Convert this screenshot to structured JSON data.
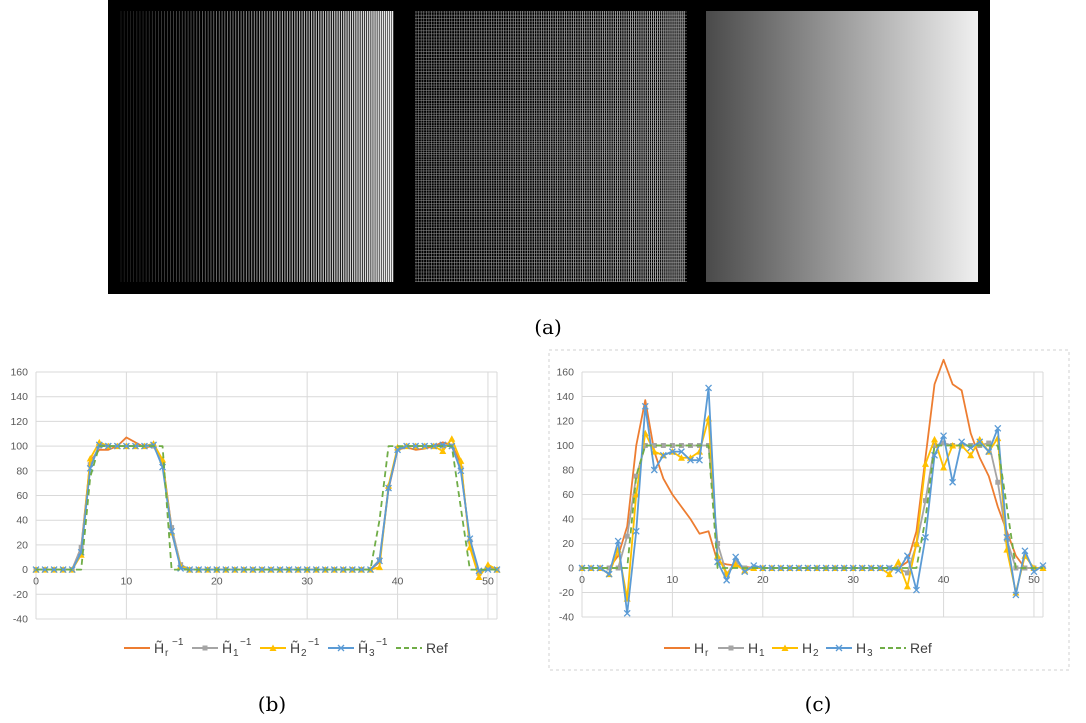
{
  "figure": {
    "captions": {
      "a": "(a)",
      "b": "(b)",
      "c": "(c)"
    }
  },
  "colors": {
    "orange": "#ED7D31",
    "gray": "#A5A5A5",
    "yellow": "#FFC000",
    "blue": "#5B9BD5",
    "green": "#70AD47",
    "grid": "#D9D9D9",
    "panel_bg": "#000000"
  },
  "images": [
    {
      "pattern": "vertical-lines-increasing-density-left-to-right"
    },
    {
      "pattern": "moire-crosshatch"
    },
    {
      "pattern": "horizontal-gradient-dark-to-light"
    }
  ],
  "chart_data": [
    {
      "id": "b",
      "type": "line",
      "xlim": [
        0,
        51
      ],
      "ylim": [
        -40,
        160
      ],
      "xticks": [
        0,
        10,
        20,
        30,
        40,
        50
      ],
      "yticks": [
        -40,
        -20,
        0,
        20,
        40,
        60,
        80,
        100,
        120,
        140,
        160
      ],
      "grid": true,
      "legend": "bottom",
      "series": [
        {
          "name": "H̃r",
          "sup": "−1",
          "color": "#ED7D31",
          "marker": "none",
          "values": [
            0,
            0,
            0,
            0,
            0,
            18,
            88,
            97,
            97,
            100,
            107,
            103,
            99,
            100,
            88,
            34,
            3,
            0,
            0,
            0,
            0,
            0,
            0,
            0,
            0,
            0,
            0,
            0,
            0,
            0,
            0,
            0,
            0,
            0,
            0,
            0,
            0,
            0,
            6,
            65,
            97,
            99,
            97,
            98,
            100,
            103,
            101,
            86,
            20,
            -4,
            2,
            0
          ]
        },
        {
          "name": "H̃1",
          "sup": "−1",
          "color": "#A5A5A5",
          "marker": "square",
          "values": [
            0,
            0,
            0,
            0,
            0,
            18,
            85,
            100,
            100,
            100,
            100,
            100,
            100,
            100,
            86,
            34,
            4,
            0,
            0,
            0,
            0,
            0,
            0,
            0,
            0,
            0,
            0,
            0,
            0,
            0,
            0,
            0,
            0,
            0,
            0,
            0,
            0,
            0,
            8,
            66,
            98,
            100,
            100,
            100,
            100,
            100,
            100,
            82,
            23,
            -3,
            1,
            0
          ]
        },
        {
          "name": "H̃2",
          "sup": "−1",
          "color": "#FFC000",
          "marker": "triangle",
          "values": [
            0,
            0,
            0,
            0,
            0,
            12,
            90,
            103,
            100,
            100,
            100,
            100,
            100,
            102,
            89,
            30,
            3,
            0,
            0,
            0,
            0,
            0,
            0,
            0,
            0,
            0,
            0,
            0,
            0,
            0,
            0,
            0,
            0,
            0,
            0,
            0,
            0,
            0,
            2,
            68,
            99,
            100,
            100,
            100,
            100,
            96,
            106,
            88,
            18,
            -6,
            4,
            0
          ]
        },
        {
          "name": "H̃3",
          "sup": "−1",
          "color": "#5B9BD5",
          "marker": "x",
          "values": [
            0,
            0,
            0,
            0,
            0,
            14,
            82,
            101,
            100,
            100,
            100,
            100,
            100,
            101,
            83,
            31,
            1,
            0,
            0,
            0,
            0,
            0,
            0,
            0,
            0,
            0,
            0,
            0,
            0,
            0,
            0,
            0,
            0,
            0,
            0,
            0,
            0,
            0,
            7,
            66,
            97,
            100,
            100,
            100,
            100,
            101,
            100,
            80,
            25,
            -1,
            0,
            0
          ]
        },
        {
          "name": "Ref",
          "sup": "",
          "color": "#70AD47",
          "marker": "none",
          "dashed": true,
          "values": [
            0,
            0,
            0,
            0,
            0,
            0,
            75,
            100,
            100,
            100,
            100,
            100,
            100,
            100,
            100,
            0,
            0,
            0,
            0,
            0,
            0,
            0,
            0,
            0,
            0,
            0,
            0,
            0,
            0,
            0,
            0,
            0,
            0,
            0,
            0,
            0,
            0,
            0,
            40,
            100,
            100,
            100,
            100,
            100,
            100,
            100,
            100,
            50,
            0,
            0,
            0,
            0
          ]
        }
      ]
    },
    {
      "id": "c",
      "type": "line",
      "xlim": [
        0,
        51
      ],
      "ylim": [
        -40,
        160
      ],
      "xticks": [
        0,
        10,
        20,
        30,
        40,
        50
      ],
      "yticks": [
        -40,
        -20,
        0,
        20,
        40,
        60,
        80,
        100,
        120,
        140,
        160
      ],
      "grid": true,
      "legend": "bottom",
      "series": [
        {
          "name": "Hr",
          "color": "#ED7D31",
          "marker": "none",
          "values": [
            0,
            0,
            0,
            0,
            10,
            34,
            100,
            137,
            95,
            73,
            60,
            50,
            40,
            28,
            30,
            5,
            3,
            2,
            1,
            0,
            0,
            0,
            0,
            0,
            0,
            0,
            0,
            0,
            0,
            0,
            0,
            0,
            0,
            0,
            0,
            0,
            5,
            30,
            90,
            150,
            170,
            150,
            145,
            110,
            90,
            75,
            50,
            30,
            10,
            0,
            0,
            0
          ]
        },
        {
          "name": "H1",
          "color": "#A5A5A5",
          "marker": "square",
          "values": [
            0,
            0,
            0,
            0,
            0,
            26,
            75,
            100,
            100,
            100,
            100,
            100,
            100,
            100,
            100,
            20,
            -5,
            5,
            0,
            0,
            0,
            0,
            0,
            0,
            0,
            0,
            0,
            0,
            0,
            0,
            0,
            0,
            0,
            0,
            0,
            0,
            -4,
            19,
            55,
            100,
            102,
            100,
            100,
            100,
            100,
            102,
            70,
            23,
            0,
            0,
            0,
            0
          ]
        },
        {
          "name": "H2",
          "color": "#FFC000",
          "marker": "triangle",
          "values": [
            0,
            0,
            0,
            -5,
            15,
            -25,
            60,
            110,
            95,
            92,
            95,
            90,
            90,
            95,
            122,
            10,
            -5,
            3,
            -2,
            0,
            0,
            0,
            0,
            0,
            0,
            0,
            0,
            0,
            0,
            0,
            0,
            0,
            0,
            0,
            -5,
            5,
            -15,
            20,
            85,
            105,
            82,
            100,
            100,
            92,
            105,
            95,
            106,
            15,
            -20,
            10,
            0,
            0
          ]
        },
        {
          "name": "H3",
          "color": "#5B9BD5",
          "marker": "x",
          "values": [
            0,
            0,
            0,
            -5,
            22,
            -37,
            30,
            132,
            80,
            92,
            95,
            95,
            88,
            88,
            147,
            5,
            -10,
            9,
            -3,
            2,
            0,
            0,
            0,
            0,
            0,
            0,
            0,
            0,
            0,
            0,
            0,
            0,
            0,
            0,
            0,
            -2,
            10,
            -18,
            25,
            92,
            108,
            70,
            103,
            98,
            103,
            95,
            114,
            25,
            -22,
            14,
            -3,
            2
          ]
        },
        {
          "name": "Ref",
          "color": "#70AD47",
          "marker": "none",
          "dashed": true,
          "values": [
            0,
            0,
            0,
            0,
            0,
            0,
            75,
            100,
            100,
            100,
            100,
            100,
            100,
            100,
            100,
            0,
            0,
            0,
            0,
            0,
            0,
            0,
            0,
            0,
            0,
            0,
            0,
            0,
            0,
            0,
            0,
            0,
            0,
            0,
            0,
            0,
            0,
            0,
            40,
            100,
            100,
            100,
            100,
            100,
            100,
            100,
            100,
            50,
            0,
            0,
            0,
            0
          ]
        }
      ]
    }
  ]
}
